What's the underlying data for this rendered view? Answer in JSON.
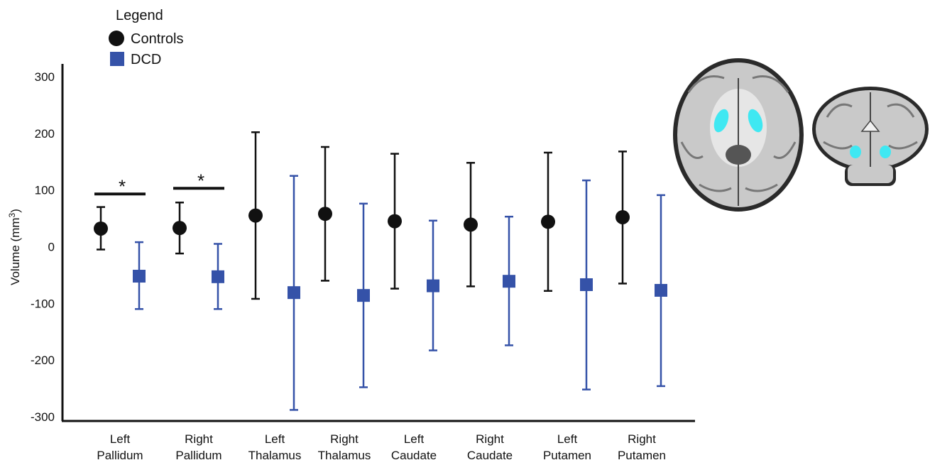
{
  "chart_data": {
    "type": "scatter",
    "title": "",
    "xlabel": "",
    "ylabel": "Volume (mm",
    "ylabel_sup": "3",
    "ylabel_close": ")",
    "ylim": [
      -300,
      320
    ],
    "yticks": [
      300,
      200,
      100,
      0,
      -100,
      -200,
      -300
    ],
    "ytick_labels": [
      "300",
      "200",
      "100",
      "0",
      "-100",
      "-200",
      "-300"
    ],
    "grid": false,
    "legend_title": "Legend",
    "legend_position": "top-left",
    "categories": [
      [
        "Left",
        "Pallidum"
      ],
      [
        "Right",
        "Pallidum"
      ],
      [
        "Left",
        "Thalamus"
      ],
      [
        "Right",
        "Thalamus"
      ],
      [
        "Left",
        "Caudate"
      ],
      [
        "Right",
        "Caudate"
      ],
      [
        "Left",
        "Putamen"
      ],
      [
        "Right",
        "Putamen"
      ]
    ],
    "series": [
      {
        "name": "Controls",
        "color": "#111111",
        "marker": "circle",
        "values": [
          32,
          33,
          55,
          58,
          45,
          39,
          44,
          52
        ],
        "err_low": [
          -5,
          -12,
          -92,
          -60,
          -74,
          -70,
          -78,
          -65
        ],
        "err_high": [
          70,
          78,
          202,
          176,
          164,
          148,
          166,
          168
        ]
      },
      {
        "name": "DCD",
        "color": "#3552a8",
        "marker": "square",
        "values": [
          -52,
          -53,
          -81,
          -86,
          -69,
          -61,
          -67,
          -77
        ],
        "err_low": [
          -110,
          -110,
          -288,
          -248,
          -183,
          -174,
          -252,
          -246
        ],
        "err_high": [
          8,
          5,
          125,
          76,
          46,
          53,
          117,
          91
        ]
      }
    ],
    "annotations": [
      {
        "text": "*",
        "category_index": 0,
        "y": 93
      },
      {
        "text": "*",
        "category_index": 1,
        "y": 103
      }
    ]
  },
  "image": {
    "description_icon": "brain-mri-icon",
    "highlight_color": "#3fe8f2"
  }
}
